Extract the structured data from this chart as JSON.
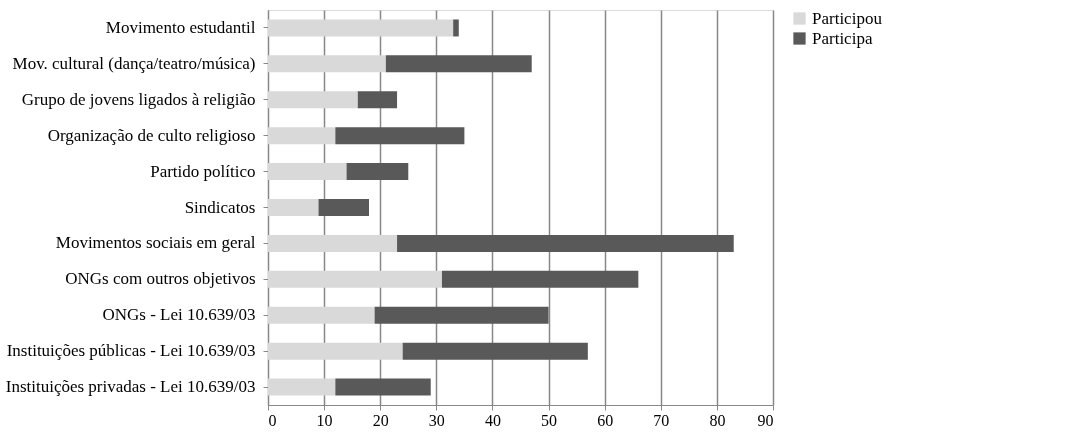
{
  "chart_data": {
    "type": "bar",
    "orientation": "horizontal",
    "stacked": true,
    "categories": [
      "Movimento estudantil",
      "Mov. cultural (dança/teatro/música)",
      "Grupo de jovens ligados à religião",
      "Organização de culto religioso",
      "Partido político",
      "Sindicatos",
      "Movimentos sociais em geral",
      "ONGs com outros objetivos",
      "ONGs - Lei 10.639/03",
      "Instituições públicas - Lei 10.639/03",
      "Instituições privadas - Lei 10.639/03"
    ],
    "series": [
      {
        "name": "Participou",
        "color": "#d9d9d9",
        "values": [
          33,
          21,
          16,
          12,
          14,
          9,
          23,
          31,
          19,
          24,
          12
        ]
      },
      {
        "name": "Participa",
        "color": "#595959",
        "values": [
          1,
          26,
          7,
          23,
          11,
          9,
          60,
          35,
          31,
          33,
          17
        ]
      }
    ],
    "xlim": [
      0,
      90
    ],
    "xticks": [
      0,
      10,
      20,
      30,
      40,
      50,
      60,
      70,
      80,
      90
    ],
    "grid": "x",
    "legend": "right"
  }
}
